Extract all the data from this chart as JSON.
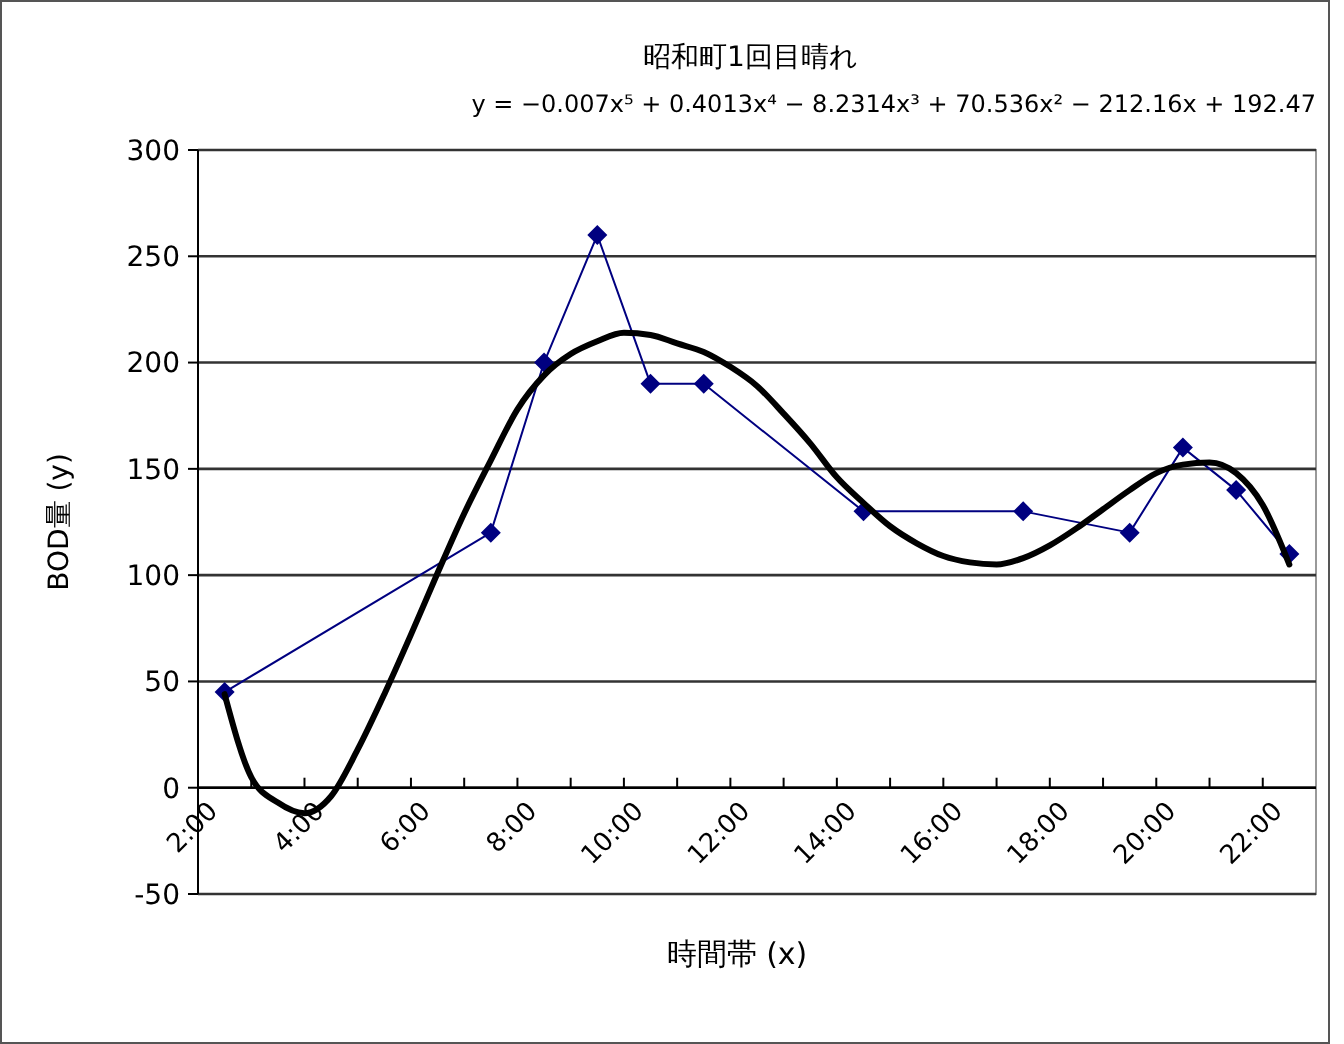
{
  "chart_data": {
    "type": "line",
    "title": "昭和町1回目晴れ",
    "xlabel": "時間帯 (x)",
    "ylabel": "BOD量 (y)",
    "annotations": [
      "y = −0.007x⁵ + 0.4013x⁴ − 8.2314x³ + 70.536x² − 212.16x + 192.47"
    ],
    "xlim": [
      2,
      23
    ],
    "xticks": [
      {
        "value": 2,
        "label": "2:00"
      },
      {
        "value": 3,
        "label": null
      },
      {
        "value": 4,
        "label": "4:00"
      },
      {
        "value": 5,
        "label": null
      },
      {
        "value": 6,
        "label": "6:00"
      },
      {
        "value": 7,
        "label": null
      },
      {
        "value": 8,
        "label": "8:00"
      },
      {
        "value": 9,
        "label": null
      },
      {
        "value": 10,
        "label": "10:00"
      },
      {
        "value": 11,
        "label": null
      },
      {
        "value": 12,
        "label": "12:00"
      },
      {
        "value": 13,
        "label": null
      },
      {
        "value": 14,
        "label": "14:00"
      },
      {
        "value": 15,
        "label": null
      },
      {
        "value": 16,
        "label": "16:00"
      },
      {
        "value": 17,
        "label": null
      },
      {
        "value": 18,
        "label": "18:00"
      },
      {
        "value": 19,
        "label": null
      },
      {
        "value": 20,
        "label": "20:00"
      },
      {
        "value": 21,
        "label": null
      },
      {
        "value": 22,
        "label": "22:00"
      }
    ],
    "ylim": [
      -50,
      300
    ],
    "yticks": [
      -50,
      0,
      50,
      100,
      150,
      200,
      250,
      300
    ],
    "grid": "y",
    "series": [
      {
        "color": "#000080",
        "marker": "diamond",
        "x": [
          2.5,
          7.5,
          8.5,
          9.5,
          10.5,
          11.5,
          14.5,
          17.5,
          19.5,
          20.5,
          21.5,
          22.5
        ],
        "values": [
          45,
          120,
          200,
          260,
          190,
          190,
          130,
          130,
          120,
          160,
          140,
          110
        ]
      },
      {
        "color": "#000000",
        "marker": "none",
        "x": [
          2.5,
          3,
          3.5,
          4,
          4.5,
          5,
          5.5,
          6,
          6.5,
          7,
          7.5,
          8,
          8.5,
          9,
          9.5,
          10,
          10.5,
          11,
          11.5,
          12,
          12.5,
          13,
          13.5,
          14,
          14.5,
          15,
          15.5,
          16,
          16.5,
          17,
          17.5,
          18,
          18.5,
          19,
          19.5,
          20,
          20.5,
          21,
          21.5,
          22,
          22.5
        ],
        "values": [
          44,
          5,
          -7,
          -12,
          -4,
          18,
          44,
          72,
          101,
          129,
          154,
          178,
          194,
          204,
          210,
          214,
          213,
          209,
          205,
          198,
          189,
          176,
          162,
          146,
          134,
          123,
          115,
          109,
          106,
          105,
          108,
          114,
          122,
          131,
          140,
          148,
          152,
          153,
          148,
          133,
          105
        ]
      }
    ]
  }
}
